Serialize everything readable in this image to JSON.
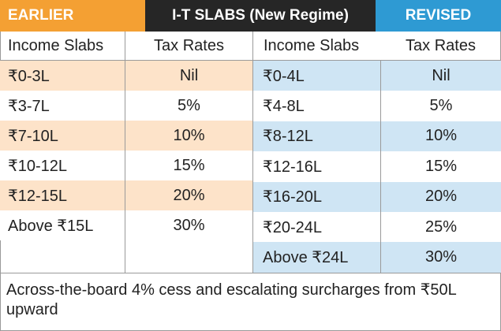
{
  "header": {
    "earlier_label": "EARLIER",
    "title": "I-T SLABS (New Regime)",
    "revised_label": "REVISED",
    "colors": {
      "earlier": "#f4a033",
      "title_bg": "#262626",
      "revised": "#2e9ad3"
    }
  },
  "earlier": {
    "col_slab": "Income Slabs",
    "col_rate": "Tax Rates",
    "rows": [
      {
        "slab": "₹0-3L",
        "rate": "Nil"
      },
      {
        "slab": "₹3-7L",
        "rate": "5%"
      },
      {
        "slab": "₹7-10L",
        "rate": "10%"
      },
      {
        "slab": "₹10-12L",
        "rate": "15%"
      },
      {
        "slab": "₹12-15L",
        "rate": "20%"
      },
      {
        "slab": "Above ₹15L",
        "rate": "30%"
      }
    ],
    "row_colors": {
      "highlight": "#fde3c9",
      "plain": "#ffffff"
    }
  },
  "revised": {
    "col_slab": "Income Slabs",
    "col_rate": "Tax Rates",
    "rows": [
      {
        "slab": "₹0-4L",
        "rate": "Nil"
      },
      {
        "slab": "₹4-8L",
        "rate": "5%"
      },
      {
        "slab": "₹8-12L",
        "rate": "10%"
      },
      {
        "slab": "₹12-16L",
        "rate": "15%"
      },
      {
        "slab": "₹16-20L",
        "rate": "20%"
      },
      {
        "slab": "₹20-24L",
        "rate": "25%"
      },
      {
        "slab": "Above ₹24L",
        "rate": "30%"
      }
    ],
    "row_colors": {
      "highlight": "#cfe5f4",
      "plain": "#ffffff"
    }
  },
  "footnote": "Across-the-board 4% cess and escalating surcharges from ₹50L upward"
}
